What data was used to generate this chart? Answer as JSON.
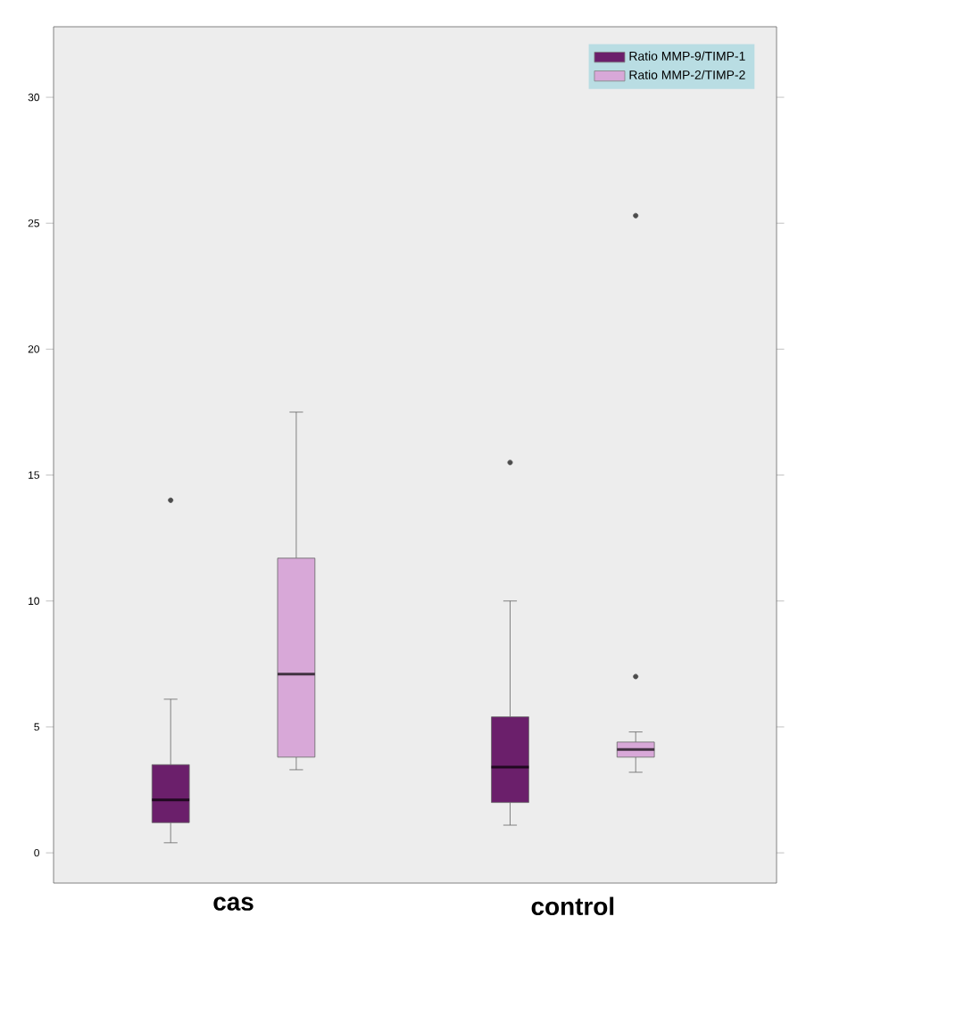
{
  "chart_data": {
    "type": "box",
    "categories": [
      "cas",
      "control"
    ],
    "series": [
      {
        "name": "Ratio MMP-9/TIMP-1",
        "color": "#6b1f6b",
        "boxes": [
          {
            "low": 0.4,
            "q1": 1.2,
            "median": 2.1,
            "q3": 3.5,
            "high": 6.1,
            "outliers": [
              14
            ]
          },
          {
            "low": 1.1,
            "q1": 2.0,
            "median": 3.4,
            "q3": 5.4,
            "high": 10.0,
            "outliers": [
              15.5
            ]
          }
        ]
      },
      {
        "name": "Ratio MMP-2/TIMP-2",
        "color": "#d8a8d8",
        "boxes": [
          {
            "low": 3.3,
            "q1": 3.8,
            "median": 7.1,
            "q3": 11.7,
            "high": 17.5
          },
          {
            "low": 3.2,
            "q1": 3.8,
            "median": 4.1,
            "q3": 4.4,
            "high": 4.8,
            "outliers": [
              7.0,
              25.3
            ]
          }
        ]
      }
    ],
    "ylim": [
      -1.2,
      32.8
    ],
    "yticks": [
      0,
      5,
      10,
      15,
      20,
      25,
      30
    ],
    "legend": "top right"
  }
}
